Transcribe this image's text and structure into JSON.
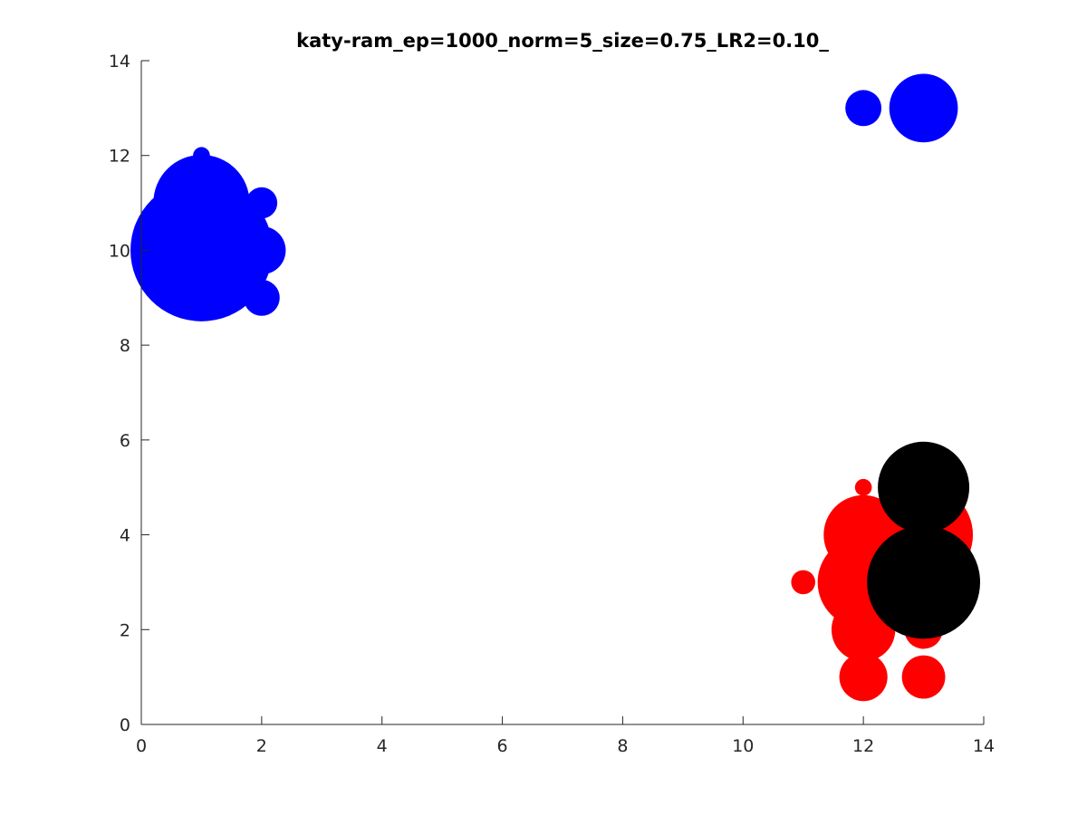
{
  "chart_data": {
    "type": "scatter",
    "title": "katy-ram_ep=1000_norm=5_size=0.75_LR2=0.10_",
    "xlabel": "",
    "ylabel": "",
    "xlim": [
      0,
      14
    ],
    "ylim": [
      0,
      14
    ],
    "xticks": [
      "0",
      "2",
      "4",
      "6",
      "8",
      "10",
      "12",
      "14"
    ],
    "yticks": [
      "0",
      "2",
      "4",
      "6",
      "8",
      "10",
      "12",
      "14"
    ],
    "grid": false,
    "colors": {
      "blue": "#0000ff",
      "red": "#ff0000",
      "black": "#000000"
    },
    "series": [
      {
        "color": "blue",
        "points": [
          {
            "x": 1,
            "y": 10,
            "size": 1.18
          },
          {
            "x": 1,
            "y": 11,
            "size": 0.8
          },
          {
            "x": 1,
            "y": 12,
            "size": 0.14
          },
          {
            "x": 2,
            "y": 11,
            "size": 0.26
          },
          {
            "x": 2,
            "y": 10,
            "size": 0.4
          },
          {
            "x": 2,
            "y": 9,
            "size": 0.3
          },
          {
            "x": 12,
            "y": 13,
            "size": 0.3
          },
          {
            "x": 13,
            "y": 13,
            "size": 0.57
          }
        ]
      },
      {
        "color": "red",
        "points": [
          {
            "x": 12,
            "y": 5,
            "size": 0.14
          },
          {
            "x": 12,
            "y": 4,
            "size": 0.66
          },
          {
            "x": 12,
            "y": 3,
            "size": 0.76
          },
          {
            "x": 12,
            "y": 2,
            "size": 0.53
          },
          {
            "x": 12,
            "y": 1,
            "size": 0.4
          },
          {
            "x": 11,
            "y": 3,
            "size": 0.2
          },
          {
            "x": 13,
            "y": 4,
            "size": 0.82
          },
          {
            "x": 13,
            "y": 2,
            "size": 0.32
          },
          {
            "x": 13,
            "y": 1,
            "size": 0.36
          }
        ]
      },
      {
        "color": "black",
        "points": [
          {
            "x": 13,
            "y": 5,
            "size": 0.76
          },
          {
            "x": 13,
            "y": 3,
            "size": 0.94
          }
        ]
      }
    ]
  }
}
